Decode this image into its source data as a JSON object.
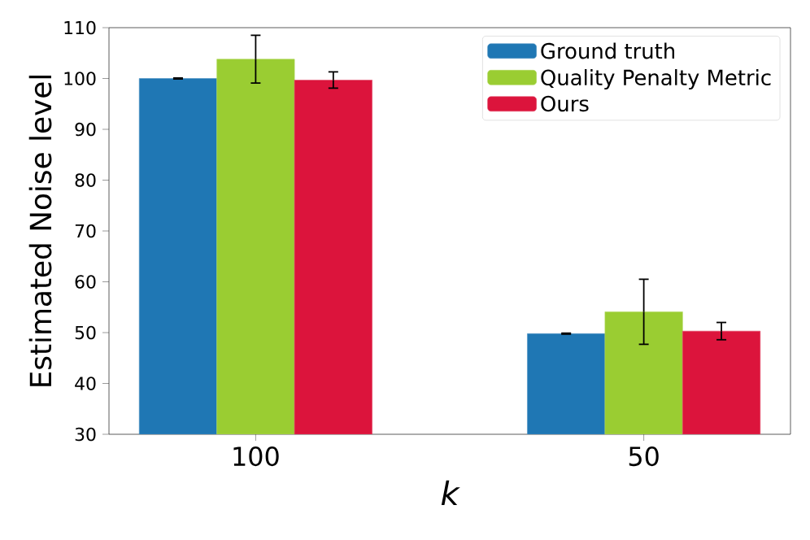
{
  "chart_data": {
    "type": "bar",
    "xlabel": "k",
    "ylabel": "Estimated Noise level",
    "categories": [
      "100",
      "50"
    ],
    "series": [
      {
        "name": "Ground truth",
        "color": "#1f77b4",
        "values": [
          100,
          49.8
        ],
        "errors": [
          0.1,
          0.1
        ]
      },
      {
        "name": "Quality Penalty Metric",
        "color": "#9acd32",
        "values": [
          103.8,
          54.1
        ],
        "errors": [
          4.7,
          6.4
        ]
      },
      {
        "name": "Ours",
        "color": "#dc143c",
        "values": [
          99.7,
          50.3
        ],
        "errors": [
          1.6,
          1.7
        ]
      }
    ],
    "ylim": [
      30,
      110
    ],
    "yticks": [
      30,
      40,
      50,
      60,
      70,
      80,
      90,
      100,
      110
    ],
    "legend": "top right",
    "grid": false
  }
}
